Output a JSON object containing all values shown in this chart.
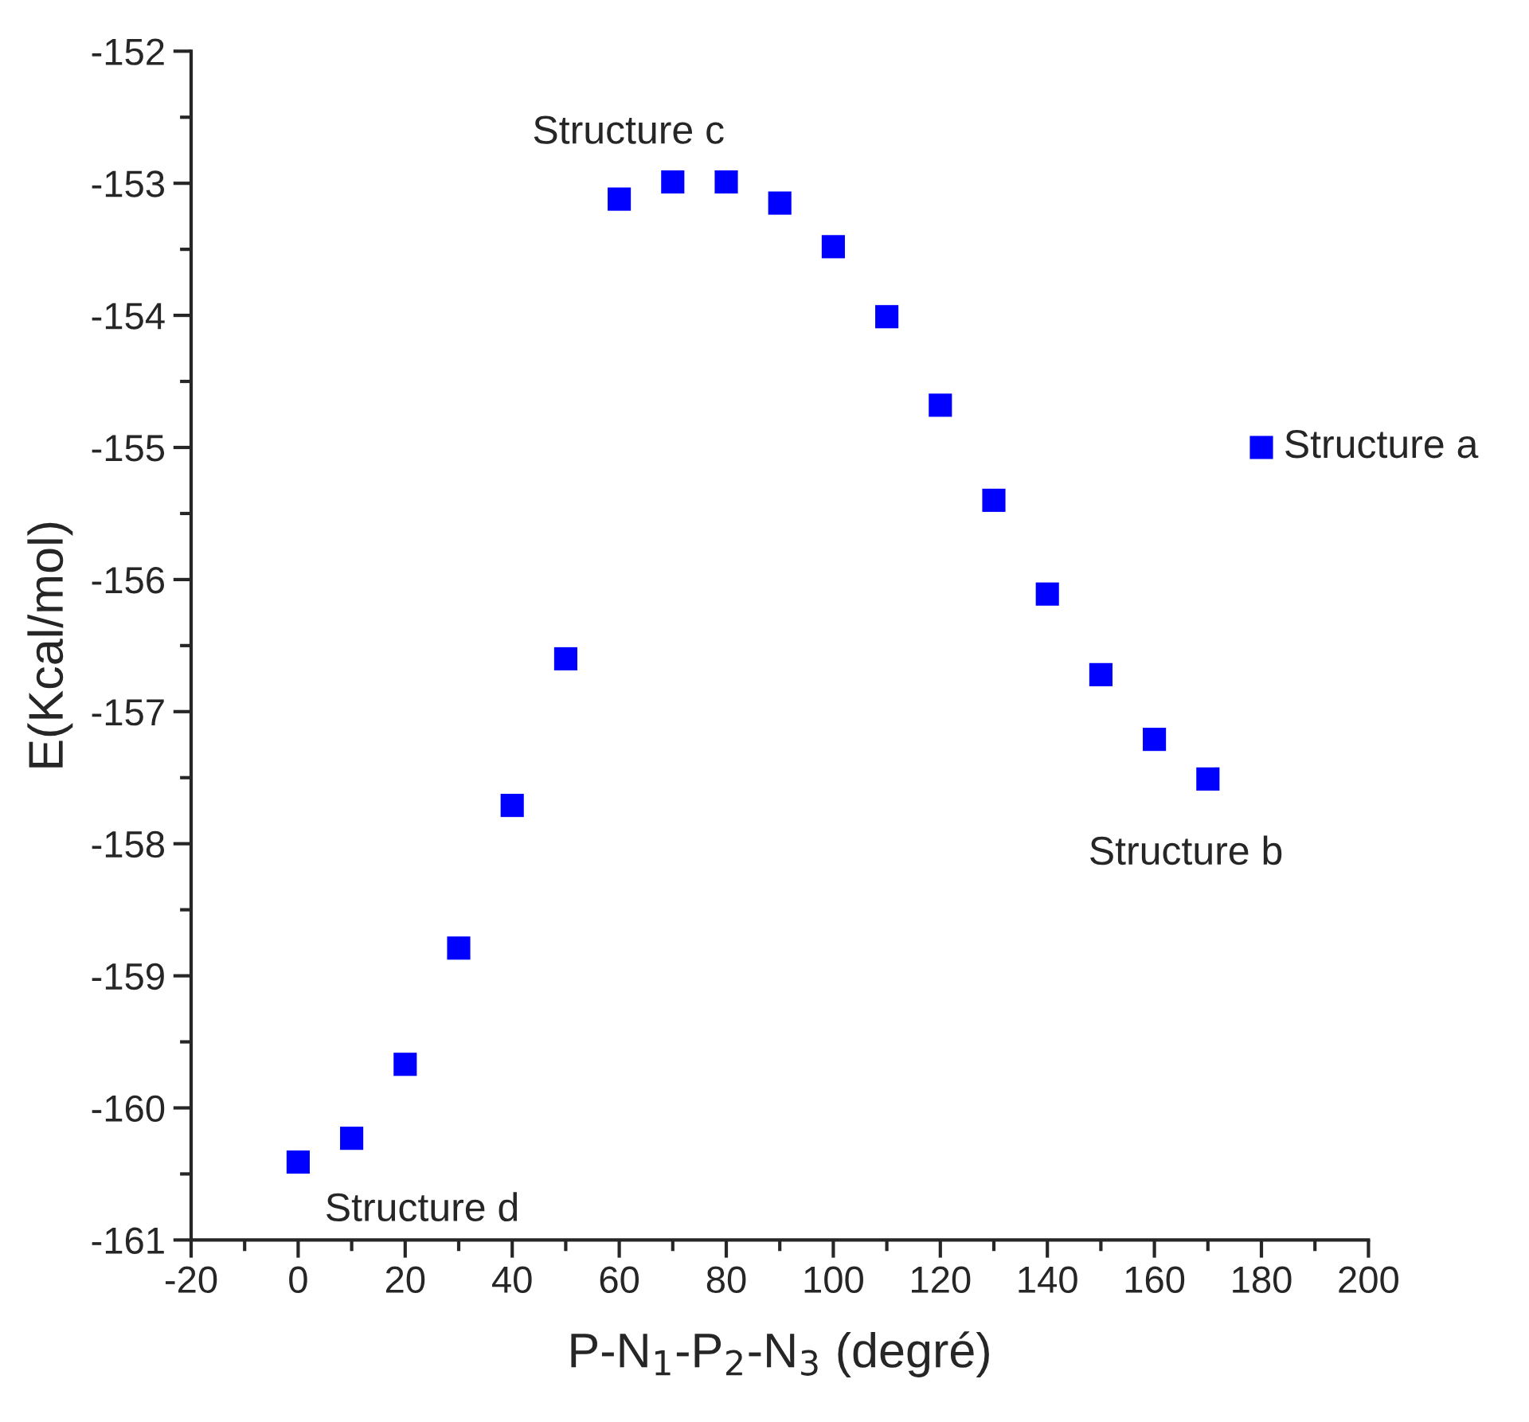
{
  "chart_data": {
    "type": "scatter",
    "xlabel": "P-N$_{1}$-P$_{2}$-N$_{3}$ (degré)",
    "ylabel": "E(Kcal/mol)",
    "x": [
      0,
      10,
      20,
      30,
      40,
      50,
      60,
      70,
      80,
      90,
      100,
      110,
      120,
      130,
      140,
      150,
      160,
      170,
      180
    ],
    "series": [
      {
        "color": "#0000ff",
        "values": [
          -160.41,
          -160.23,
          -159.67,
          -158.79,
          -157.71,
          -156.6,
          -153.12,
          -152.99,
          -152.99,
          -153.15,
          -153.48,
          -154.01,
          -154.68,
          -155.4,
          -156.11,
          -156.72,
          -157.21,
          -157.51,
          -155.0
        ]
      }
    ],
    "marker": "square",
    "xlim": [
      -20,
      200
    ],
    "xticks": [
      -20,
      0,
      20,
      40,
      60,
      80,
      100,
      120,
      140,
      160,
      180,
      200
    ],
    "ylim": [
      -161,
      -152
    ],
    "yticks": [
      -161,
      -160,
      -159,
      -158,
      -157,
      -156,
      -155,
      -154,
      -153,
      -152
    ],
    "grid": false,
    "annotations": [
      {
        "text": "Structure c",
        "x": 70,
        "y": -152.99
      },
      {
        "text": "Structure a",
        "x": 180,
        "y": -155.0
      },
      {
        "text": "Structure b",
        "x": 170,
        "y": -157.51
      },
      {
        "text": "Structure d",
        "x": 0,
        "y": -160.41
      }
    ]
  }
}
